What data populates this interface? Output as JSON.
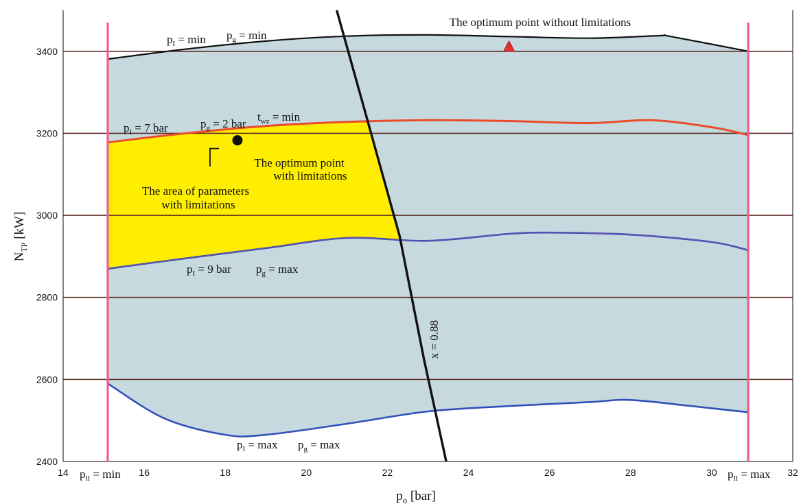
{
  "chart_data": {
    "type": "area",
    "xlabel": "p",
    "xlabel_sub": "o",
    "xlabel_unit": "[bar]",
    "ylabel": "N",
    "ylabel_sub": "TP",
    "ylabel_unit": "[kW]",
    "xlim": [
      14,
      32
    ],
    "ylim": [
      2400,
      3500
    ],
    "x_ticks": [
      "14",
      "16",
      "18",
      "20",
      "22",
      "24",
      "26",
      "28",
      "30",
      "32"
    ],
    "y_ticks": [
      "2400",
      "2600",
      "2800",
      "3000",
      "3200",
      "3400"
    ],
    "grid": "horizontal",
    "colors": {
      "region_fill": "#c6d9df",
      "constraint_fill": "#ffee00",
      "boundary_pink": "#ef5d8e",
      "top_curve": "#111111",
      "mid_curve": "#ea4b2a",
      "lower_curves": "#2f50b8",
      "x_line": "#111111",
      "grid": "#5b2a23"
    },
    "series": [
      {
        "name": "top",
        "points": [
          [
            15.1,
            3381
          ],
          [
            17,
            3405
          ],
          [
            19,
            3425
          ],
          [
            21,
            3437
          ],
          [
            23,
            3440
          ],
          [
            25,
            3436
          ],
          [
            27,
            3432
          ],
          [
            28.7,
            3438
          ],
          [
            29,
            3436
          ],
          [
            30.9,
            3400
          ]
        ]
      },
      {
        "name": "p_I = 7 bar",
        "points": [
          [
            15.1,
            3178
          ],
          [
            17,
            3200
          ],
          [
            19,
            3218
          ],
          [
            21,
            3228
          ],
          [
            23,
            3232
          ],
          [
            25,
            3230
          ],
          [
            27,
            3225
          ],
          [
            28.5,
            3232
          ],
          [
            30,
            3215
          ],
          [
            30.9,
            3196
          ]
        ]
      },
      {
        "name": "p_I = 9 bar",
        "points": [
          [
            15.1,
            2870
          ],
          [
            17,
            2895
          ],
          [
            19,
            2920
          ],
          [
            21,
            2945
          ],
          [
            23,
            2938
          ],
          [
            25,
            2955
          ],
          [
            26,
            2958
          ],
          [
            28,
            2953
          ],
          [
            30,
            2935
          ],
          [
            30.9,
            2915
          ]
        ]
      },
      {
        "name": "p_I = max",
        "points": [
          [
            15.1,
            2590
          ],
          [
            16.5,
            2505
          ],
          [
            18,
            2465
          ],
          [
            19,
            2465
          ],
          [
            21,
            2492
          ],
          [
            23,
            2522
          ],
          [
            25,
            2535
          ],
          [
            27,
            2545
          ],
          [
            28,
            2550
          ],
          [
            29.5,
            2535
          ],
          [
            30.9,
            2520
          ]
        ]
      }
    ],
    "x_line": {
      "label": "x = 0.88",
      "points": [
        [
          20.75,
          3500
        ],
        [
          21.4,
          3270
        ],
        [
          22.3,
          2950
        ],
        [
          22.9,
          2650
        ],
        [
          23.45,
          2400
        ]
      ]
    },
    "boundaries": [
      {
        "x": 15.1,
        "label_main": "p",
        "label_sub": "II",
        "label_tail": " = min"
      },
      {
        "x": 30.9,
        "label_main": "p",
        "label_sub": "II",
        "label_tail": " = max"
      }
    ],
    "optimum_without": {
      "x": 25,
      "y": 3410,
      "label": "The optimum point without limitations"
    },
    "optimum_with": {
      "x": 18.3,
      "y": 3183,
      "label_lines": [
        "The optimum point",
        "with limitations"
      ]
    },
    "area_label_lines": [
      "The area of parameters",
      "with limitations"
    ],
    "curve_labels": {
      "top": [
        {
          "main": "p",
          "sub": "I",
          "tail": " = min"
        },
        {
          "main": "p",
          "sub": "g",
          "tail": " = min"
        }
      ],
      "mid": [
        {
          "main": "p",
          "sub": "I",
          "tail": " = 7 bar"
        },
        {
          "main": "p",
          "sub": "g",
          "tail": " = 2 bar"
        },
        {
          "main": "t",
          "sub": "wz",
          "tail": " = min"
        }
      ],
      "low": [
        {
          "main": "p",
          "sub": "I",
          "tail": " = 9 bar"
        },
        {
          "main": "p",
          "sub": "g",
          "tail": " = max"
        }
      ],
      "bottom": [
        {
          "main": "p",
          "sub": "I",
          "tail": " = max"
        },
        {
          "main": "p",
          "sub": "g",
          "tail": " = max"
        }
      ]
    }
  }
}
